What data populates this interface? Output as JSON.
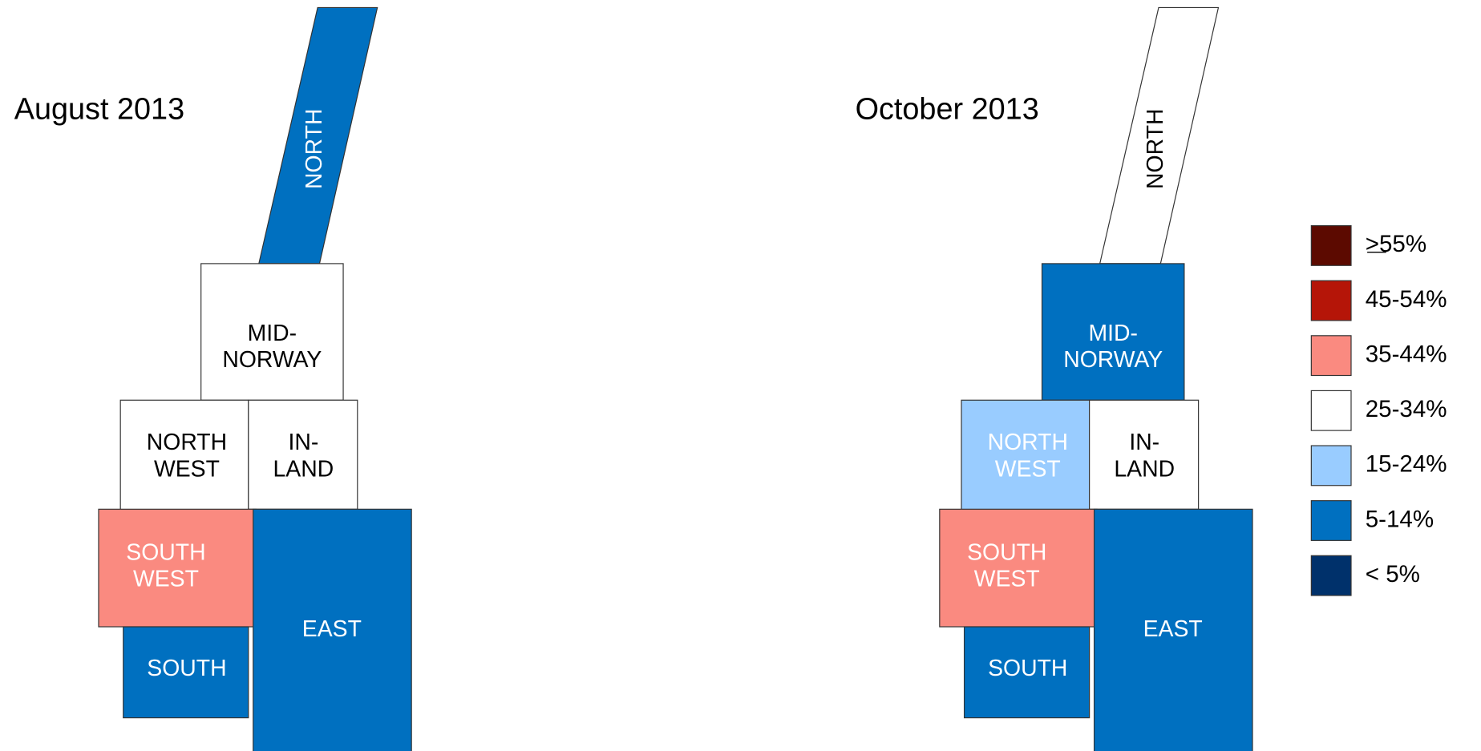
{
  "maps": [
    {
      "title": "August 2013",
      "regions": [
        {
          "label": [
            "NORTH"
          ],
          "color": "#0070c0"
        },
        {
          "label": [
            "MID-",
            "NORWAY"
          ],
          "color": "#ffffff"
        },
        {
          "label": [
            "NORTH",
            "WEST"
          ],
          "color": "#ffffff"
        },
        {
          "label": [
            "IN-",
            "LAND"
          ],
          "color": "#ffffff"
        },
        {
          "label": [
            "SOUTH",
            "WEST"
          ],
          "color": "#fa8a80"
        },
        {
          "label": [
            "EAST"
          ],
          "color": "#0070c0"
        },
        {
          "label": [
            "SOUTH"
          ],
          "color": "#0070c0"
        }
      ]
    },
    {
      "title": "October 2013",
      "regions": [
        {
          "label": [
            "NORTH"
          ],
          "color": "#ffffff"
        },
        {
          "label": [
            "MID-",
            "NORWAY"
          ],
          "color": "#0070c0"
        },
        {
          "label": [
            "NORTH",
            "WEST"
          ],
          "color": "#99ccff"
        },
        {
          "label": [
            "IN-",
            "LAND"
          ],
          "color": "#ffffff"
        },
        {
          "label": [
            "SOUTH",
            "WEST"
          ],
          "color": "#fa8a80"
        },
        {
          "label": [
            "EAST"
          ],
          "color": "#0070c0"
        },
        {
          "label": [
            "SOUTH"
          ],
          "color": "#0070c0"
        }
      ]
    }
  ],
  "legend": [
    {
      "label": ">55%",
      "color": "#5c0a00"
    },
    {
      "label": "45-54%",
      "color": "#b51508"
    },
    {
      "label": "35-44%",
      "color": "#fa8a80"
    },
    {
      "label": "25-34%",
      "color": "#ffffff"
    },
    {
      "label": "15-24%",
      "color": "#99ccff"
    },
    {
      "label": "5-14%",
      "color": "#0070c0"
    },
    {
      "label": "< 5%",
      "color": "#00316b"
    }
  ]
}
